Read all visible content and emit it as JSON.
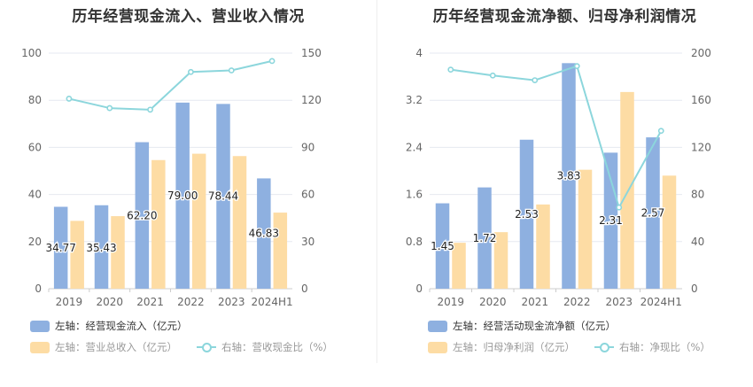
{
  "chart_data": [
    {
      "type": "bar",
      "title": "历年经营现金流入、营业收入情况",
      "categories": [
        "2019",
        "2020",
        "2021",
        "2022",
        "2023",
        "2024H1"
      ],
      "left_axis": {
        "ticks": [
          "0",
          "20",
          "40",
          "60",
          "80",
          "100"
        ],
        "ylim": [
          0,
          100
        ]
      },
      "right_axis": {
        "ticks": [
          "0",
          "30",
          "60",
          "90",
          "120",
          "150"
        ],
        "ylim": [
          0,
          150
        ]
      },
      "series": [
        {
          "name": "左轴：经营现金流入（亿元）",
          "type": "bar",
          "axis": "left",
          "color": "#8eb0e0",
          "values": [
            34.77,
            35.43,
            62.2,
            79.0,
            78.44,
            46.83
          ],
          "labels": [
            "34.77",
            "35.43",
            "62.20",
            "79.00",
            "78.44",
            "46.83"
          ]
        },
        {
          "name": "左轴：营业总收入（亿元）",
          "type": "bar",
          "axis": "left",
          "color": "#fddca4",
          "values": [
            28.8,
            30.8,
            54.6,
            57.3,
            56.3,
            32.3
          ]
        },
        {
          "name": "右轴：营收现金比（%）",
          "type": "line",
          "axis": "right",
          "color": "#8cd6dc",
          "values": [
            121,
            115,
            114,
            138,
            139,
            145
          ]
        }
      ]
    },
    {
      "type": "bar",
      "title": "历年经营现金流净额、归母净利润情况",
      "categories": [
        "2019",
        "2020",
        "2021",
        "2022",
        "2023",
        "2024H1"
      ],
      "left_axis": {
        "ticks": [
          "0",
          "0.8",
          "1.6",
          "2.4",
          "3.2",
          "4"
        ],
        "ylim": [
          0,
          4
        ]
      },
      "right_axis": {
        "ticks": [
          "0",
          "40",
          "80",
          "120",
          "160",
          "200"
        ],
        "ylim": [
          0,
          200
        ]
      },
      "series": [
        {
          "name": "左轴：经营活动现金流净额（亿元）",
          "type": "bar",
          "axis": "left",
          "color": "#8eb0e0",
          "values": [
            1.45,
            1.72,
            2.53,
            3.83,
            2.31,
            2.57
          ],
          "labels": [
            "1.45",
            "1.72",
            "2.53",
            "3.83",
            "2.31",
            "2.57"
          ]
        },
        {
          "name": "左轴：归母净利润（亿元）",
          "type": "bar",
          "axis": "left",
          "color": "#fddca4",
          "values": [
            0.78,
            0.96,
            1.43,
            2.02,
            3.34,
            1.92
          ]
        },
        {
          "name": "右轴：净现比（%）",
          "type": "line",
          "axis": "right",
          "color": "#8cd6dc",
          "values": [
            186,
            181,
            177,
            189,
            69,
            134
          ]
        }
      ]
    }
  ]
}
